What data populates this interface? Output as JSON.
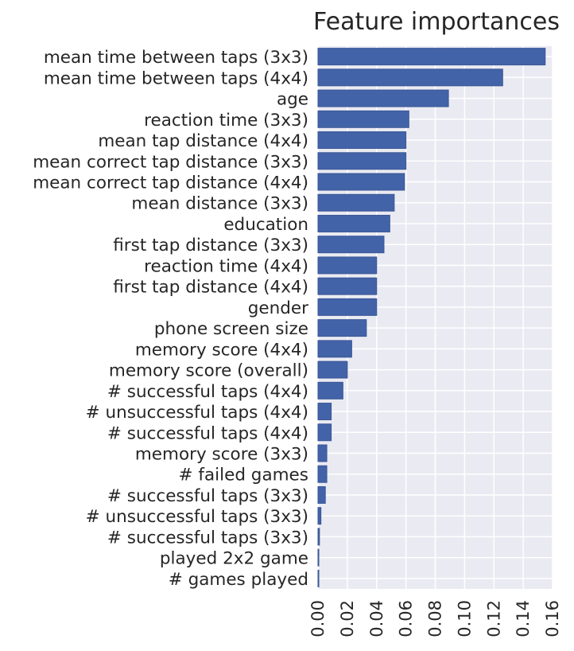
{
  "chart_data": {
    "type": "bar",
    "orientation": "horizontal",
    "title": "Feature importances",
    "xlabel": "",
    "ylabel": "",
    "xlim": [
      0,
      0.16
    ],
    "xticks": [
      "0.00",
      "0.02",
      "0.04",
      "0.06",
      "0.08",
      "0.10",
      "0.12",
      "0.14",
      "0.16"
    ],
    "grid": true,
    "categories": [
      "mean time between taps (3x3)",
      "mean time between taps (4x4)",
      "age",
      "reaction time (3x3)",
      "mean tap distance (4x4)",
      "mean correct tap distance (3x3)",
      "mean correct tap distance (4x4)",
      "mean distance (3x3)",
      "education",
      "first tap distance (3x3)",
      "reaction time (4x4)",
      "first tap distance (4x4)",
      "gender",
      "phone screen size",
      "memory score (4x4)",
      "memory score (overall)",
      "# successful taps (4x4)",
      "# unsuccessful taps (4x4)",
      "# successful taps (4x4)",
      "memory score (3x3)",
      "# failed games",
      "# successful taps (3x3)",
      "# unsuccessful taps (3x3)",
      "# successful taps (3x3)",
      "played 2x2 game",
      "# games played"
    ],
    "values": [
      0.155,
      0.126,
      0.089,
      0.062,
      0.06,
      0.06,
      0.059,
      0.052,
      0.049,
      0.045,
      0.04,
      0.04,
      0.04,
      0.033,
      0.023,
      0.02,
      0.017,
      0.009,
      0.009,
      0.006,
      0.006,
      0.005,
      0.002,
      0.001,
      0.0,
      0.0
    ]
  },
  "colors": {
    "bar": "#4363a8",
    "bar_edge": "#3a5796",
    "plot_background": "#eaeaf2",
    "grid": "#ffffff",
    "text": "#262626"
  }
}
